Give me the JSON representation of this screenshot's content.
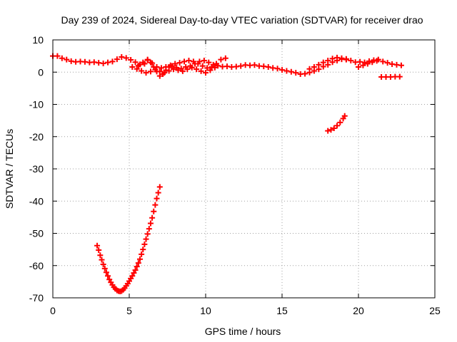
{
  "chart_data": {
    "type": "scatter",
    "title": "Day 239 of 2024, Sidereal Day-to-day VTEC variation (SDTVAR) for receiver drao",
    "xlabel": "GPS time / hours",
    "ylabel": "SDTVAR / TECUs",
    "xlim": [
      0,
      25
    ],
    "ylim": [
      -70,
      10
    ],
    "xticks": [
      0,
      5,
      10,
      15,
      20,
      25
    ],
    "yticks": [
      10,
      0,
      -10,
      -20,
      -30,
      -40,
      -50,
      -60,
      -70
    ],
    "grid": true,
    "marker": "plus",
    "color": "#ff0000",
    "series": [
      {
        "name": "main-band",
        "points": [
          [
            0.0,
            5.0
          ],
          [
            0.3,
            5.0
          ],
          [
            0.6,
            4.3
          ],
          [
            0.9,
            3.9
          ],
          [
            1.2,
            3.4
          ],
          [
            1.5,
            3.2
          ],
          [
            1.8,
            3.3
          ],
          [
            2.1,
            3.2
          ],
          [
            2.4,
            3.0
          ],
          [
            2.7,
            3.1
          ],
          [
            3.0,
            2.9
          ],
          [
            3.3,
            2.7
          ],
          [
            3.6,
            3.0
          ],
          [
            3.9,
            3.3
          ],
          [
            4.2,
            4.0
          ],
          [
            4.5,
            4.7
          ],
          [
            4.8,
            4.4
          ],
          [
            5.1,
            3.8
          ],
          [
            5.4,
            3.1
          ],
          [
            5.7,
            2.4
          ],
          [
            6.0,
            2.6
          ],
          [
            6.2,
            3.9
          ],
          [
            6.4,
            3.0
          ],
          [
            6.6,
            1.6
          ],
          [
            6.8,
            0.2
          ],
          [
            7.0,
            -1.2
          ],
          [
            7.2,
            -0.6
          ],
          [
            7.4,
            0.6
          ],
          [
            7.6,
            1.6
          ],
          [
            7.8,
            1.9
          ],
          [
            8.1,
            1.4
          ],
          [
            8.4,
            1.1
          ],
          [
            8.7,
            1.6
          ],
          [
            9.0,
            1.9
          ],
          [
            9.3,
            2.6
          ],
          [
            9.6,
            3.3
          ],
          [
            9.9,
            3.6
          ],
          [
            10.2,
            3.0
          ],
          [
            10.5,
            2.3
          ],
          [
            10.8,
            2.0
          ],
          [
            11.1,
            1.7
          ],
          [
            11.4,
            1.8
          ],
          [
            11.7,
            1.6
          ],
          [
            12.0,
            1.7
          ],
          [
            12.3,
            1.9
          ],
          [
            12.6,
            2.2
          ],
          [
            12.9,
            2.1
          ],
          [
            13.2,
            2.2
          ],
          [
            13.5,
            1.9
          ],
          [
            13.8,
            1.8
          ],
          [
            14.1,
            1.6
          ],
          [
            14.4,
            1.3
          ],
          [
            14.7,
            1.1
          ],
          [
            15.0,
            0.7
          ],
          [
            15.3,
            0.4
          ],
          [
            15.6,
            0.1
          ],
          [
            15.9,
            -0.2
          ],
          [
            16.2,
            -0.6
          ],
          [
            16.5,
            -0.5
          ],
          [
            16.8,
            -0.1
          ],
          [
            17.1,
            0.4
          ],
          [
            17.4,
            0.9
          ],
          [
            17.7,
            1.7
          ],
          [
            18.0,
            2.3
          ],
          [
            18.3,
            3.1
          ],
          [
            18.6,
            3.6
          ],
          [
            18.9,
            4.0
          ],
          [
            19.2,
            4.1
          ],
          [
            19.5,
            3.6
          ],
          [
            19.8,
            3.1
          ],
          [
            20.1,
            3.2
          ],
          [
            20.4,
            3.0
          ],
          [
            20.7,
            3.4
          ],
          [
            21.0,
            3.7
          ],
          [
            21.3,
            3.9
          ],
          [
            21.6,
            3.3
          ],
          [
            21.9,
            2.9
          ],
          [
            22.2,
            2.5
          ],
          [
            22.5,
            2.3
          ],
          [
            22.8,
            2.1
          ]
        ]
      },
      {
        "name": "upper-branch",
        "points": [
          [
            5.6,
            2.0
          ],
          [
            5.9,
            3.0
          ],
          [
            6.2,
            3.7
          ],
          [
            6.5,
            2.8
          ],
          [
            6.8,
            1.6
          ],
          [
            7.1,
            1.3
          ],
          [
            7.4,
            1.6
          ],
          [
            7.7,
            2.1
          ],
          [
            8.0,
            2.6
          ],
          [
            8.3,
            2.9
          ],
          [
            8.6,
            3.3
          ],
          [
            8.9,
            3.6
          ],
          [
            9.2,
            3.3
          ],
          [
            9.5,
            2.6
          ],
          [
            9.8,
            1.9
          ],
          [
            10.1,
            1.3
          ],
          [
            10.4,
            1.6
          ],
          [
            10.7,
            2.6
          ],
          [
            11.0,
            3.9
          ],
          [
            11.3,
            4.3
          ],
          [
            16.8,
            1.0
          ],
          [
            17.1,
            1.6
          ],
          [
            17.4,
            2.3
          ],
          [
            17.7,
            3.0
          ],
          [
            18.0,
            3.6
          ],
          [
            18.3,
            4.2
          ],
          [
            18.6,
            4.5
          ],
          [
            18.9,
            4.3
          ],
          [
            19.2,
            3.9
          ],
          [
            20.0,
            1.6
          ],
          [
            20.3,
            2.1
          ],
          [
            20.6,
            2.6
          ],
          [
            20.9,
            3.1
          ],
          [
            21.2,
            3.5
          ]
        ]
      },
      {
        "name": "lower-branch",
        "points": [
          [
            5.2,
            1.6
          ],
          [
            5.5,
            1.0
          ],
          [
            5.8,
            0.4
          ],
          [
            6.1,
            -0.2
          ],
          [
            6.4,
            0.2
          ],
          [
            6.7,
            0.8
          ],
          [
            7.0,
            0.2
          ],
          [
            7.3,
            -0.2
          ],
          [
            7.6,
            0.4
          ],
          [
            7.9,
            0.9
          ],
          [
            8.2,
            0.6
          ],
          [
            8.5,
            0.3
          ],
          [
            8.8,
            0.9
          ],
          [
            9.1,
            1.4
          ],
          [
            9.4,
            0.9
          ],
          [
            9.7,
            0.3
          ],
          [
            10.0,
            -0.2
          ],
          [
            10.3,
            0.6
          ],
          [
            10.6,
            1.4
          ],
          [
            21.5,
            -1.5
          ],
          [
            21.8,
            -1.5
          ],
          [
            22.1,
            -1.5
          ],
          [
            22.4,
            -1.4
          ],
          [
            22.7,
            -1.4
          ]
        ]
      },
      {
        "name": "arc-near-19h",
        "points": [
          [
            18.0,
            -18.2
          ],
          [
            18.2,
            -17.9
          ],
          [
            18.4,
            -17.4
          ],
          [
            18.6,
            -16.6
          ],
          [
            18.8,
            -15.6
          ],
          [
            19.0,
            -14.4
          ],
          [
            19.1,
            -13.6
          ]
        ]
      },
      {
        "name": "deep-dip",
        "points": [
          [
            2.9,
            -53.8
          ],
          [
            3.0,
            -55.2
          ],
          [
            3.1,
            -56.8
          ],
          [
            3.2,
            -58.2
          ],
          [
            3.3,
            -59.6
          ],
          [
            3.4,
            -60.9
          ],
          [
            3.5,
            -62.1
          ],
          [
            3.6,
            -63.2
          ],
          [
            3.7,
            -64.3
          ],
          [
            3.8,
            -65.2
          ],
          [
            3.9,
            -66.0
          ],
          [
            4.0,
            -66.7
          ],
          [
            4.1,
            -67.2
          ],
          [
            4.2,
            -67.7
          ],
          [
            4.3,
            -67.9
          ],
          [
            4.4,
            -68.0
          ],
          [
            4.5,
            -67.9
          ],
          [
            4.6,
            -67.5
          ],
          [
            4.7,
            -67.0
          ],
          [
            4.8,
            -66.3
          ],
          [
            4.9,
            -65.6
          ],
          [
            5.0,
            -64.8
          ],
          [
            5.1,
            -64.0
          ],
          [
            5.2,
            -63.2
          ],
          [
            5.3,
            -62.3
          ],
          [
            5.4,
            -61.4
          ],
          [
            5.5,
            -60.3
          ],
          [
            5.6,
            -59.2
          ],
          [
            5.7,
            -58.0
          ],
          [
            5.8,
            -56.5
          ],
          [
            5.9,
            -55.0
          ],
          [
            6.0,
            -53.4
          ],
          [
            6.1,
            -51.8
          ],
          [
            6.2,
            -50.2
          ],
          [
            6.3,
            -48.6
          ],
          [
            6.4,
            -46.9
          ],
          [
            6.5,
            -45.2
          ],
          [
            6.6,
            -43.2
          ],
          [
            6.7,
            -41.2
          ],
          [
            6.8,
            -39.2
          ],
          [
            6.9,
            -37.4
          ],
          [
            7.0,
            -35.6
          ]
        ]
      }
    ]
  }
}
